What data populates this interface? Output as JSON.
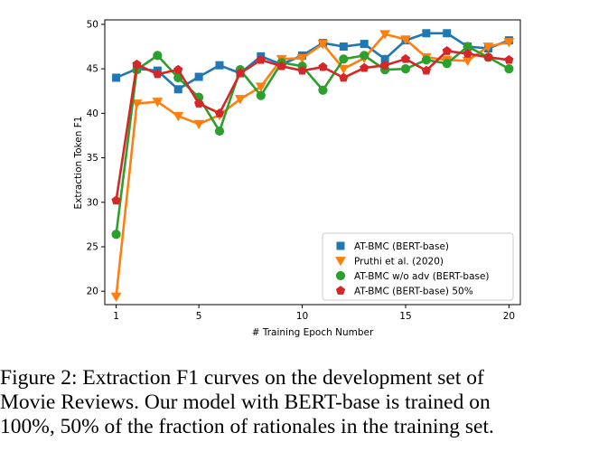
{
  "chart_data": {
    "type": "line",
    "title": "",
    "xlabel": "# Training Epoch Number",
    "ylabel": "Extraction Token F1",
    "xlim": [
      0.45,
      20.55
    ],
    "ylim": [
      18.5,
      50.5
    ],
    "xticks": [
      1,
      5,
      10,
      15,
      20
    ],
    "yticks": [
      20,
      25,
      30,
      35,
      40,
      45,
      50
    ],
    "legend_position": "lower-right",
    "x": [
      1,
      2,
      3,
      4,
      5,
      6,
      7,
      8,
      9,
      10,
      11,
      12,
      13,
      14,
      15,
      16,
      17,
      18,
      19,
      20
    ],
    "series": [
      {
        "name": "AT-BMC (BERT-base)",
        "color": "#1f77b4",
        "marker": "square",
        "values": [
          44.0,
          45.0,
          44.8,
          42.7,
          44.1,
          45.4,
          44.5,
          46.4,
          45.5,
          46.5,
          47.9,
          47.5,
          47.8,
          46.1,
          48.2,
          49.0,
          49.0,
          47.5,
          47.3,
          48.2
        ]
      },
      {
        "name": "Pruthi et al. (2020)",
        "color": "#ff7f0e",
        "marker": "triangle-down",
        "values": [
          19.4,
          41.1,
          41.3,
          39.7,
          38.8,
          39.8,
          41.6,
          43.0,
          46.1,
          46.2,
          47.8,
          45.0,
          46.2,
          48.9,
          48.3,
          46.3,
          46.0,
          45.9,
          47.5,
          48.0
        ]
      },
      {
        "name": "AT-BMC w/o adv (BERT-base)",
        "color": "#2ca02c",
        "marker": "circle",
        "values": [
          26.4,
          44.9,
          46.5,
          44.0,
          41.8,
          38.0,
          44.9,
          42.0,
          45.7,
          45.3,
          42.6,
          46.1,
          46.5,
          44.9,
          45.0,
          46.0,
          45.6,
          47.5,
          46.3,
          45.0
        ]
      },
      {
        "name": "AT-BMC (BERT-base) 50%",
        "color": "#d62728",
        "marker": "pentagon",
        "values": [
          30.2,
          45.5,
          44.4,
          44.9,
          41.1,
          40.0,
          44.5,
          46.0,
          45.3,
          44.8,
          45.2,
          44.0,
          45.1,
          45.4,
          46.1,
          44.8,
          47.0,
          46.7,
          46.3,
          46.0
        ]
      }
    ]
  },
  "caption": {
    "lines": [
      "Figure 2: Extraction F1 curves on the development set of",
      "Movie Reviews. Our model with BERT-base is trained on",
      "100%, 50% of the fraction of rationales in the training set."
    ]
  }
}
